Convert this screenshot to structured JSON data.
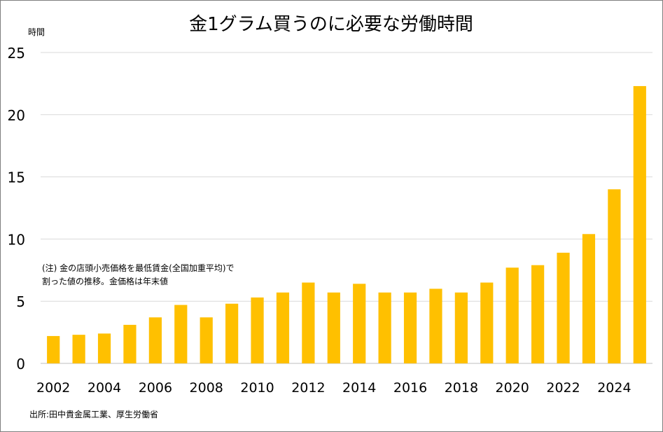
{
  "chart_data": {
    "type": "bar",
    "title": "金1グラム買うのに必要な労働時間",
    "ylabel": "時間",
    "xlabel": "",
    "ylim": [
      0,
      25
    ],
    "yticks": [
      0,
      5,
      10,
      15,
      20,
      25
    ],
    "grid": true,
    "legend": "none",
    "bar_color": "#ffc000",
    "categories": [
      "2002",
      "2003",
      "2004",
      "2005",
      "2006",
      "2007",
      "2008",
      "2009",
      "2010",
      "2011",
      "2012",
      "2013",
      "2014",
      "2015",
      "2016",
      "2017",
      "2018",
      "2019",
      "2020",
      "2021",
      "2022",
      "2023",
      "2024",
      "2025"
    ],
    "x_tick_labels": [
      "2002",
      "",
      "2004",
      "",
      "2006",
      "",
      "2008",
      "",
      "2010",
      "",
      "2012",
      "",
      "2014",
      "",
      "2016",
      "",
      "2018",
      "",
      "2020",
      "",
      "2022",
      "",
      "2024",
      ""
    ],
    "values": [
      2.2,
      2.3,
      2.4,
      3.1,
      3.7,
      4.7,
      3.7,
      4.8,
      5.3,
      5.7,
      6.5,
      5.7,
      6.4,
      5.7,
      5.7,
      6.0,
      5.7,
      6.5,
      7.7,
      7.9,
      8.9,
      10.4,
      14.0,
      22.3
    ],
    "notes": [
      "(注) 金の店頭小売価格を最低賃金(全国加重平均)で",
      "割った値の推移。金価格は年末値"
    ],
    "source": "出所:田中貴金属工業、厚生労働省"
  }
}
